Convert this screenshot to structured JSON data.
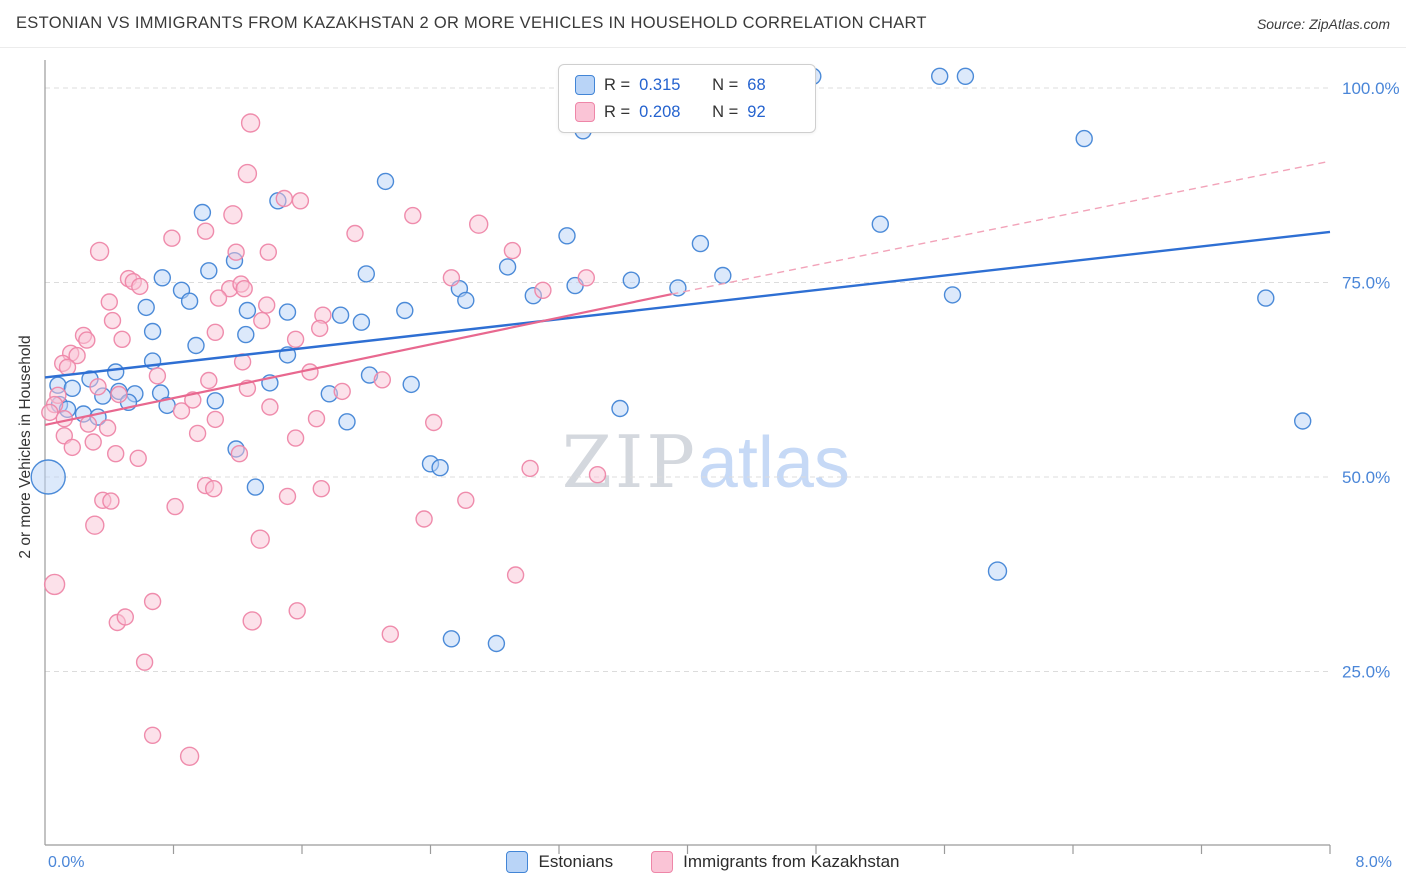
{
  "header": {
    "title": "ESTONIAN VS IMMIGRANTS FROM KAZAKHSTAN 2 OR MORE VEHICLES IN HOUSEHOLD CORRELATION CHART",
    "source": "Source: ZipAtlas.com"
  },
  "watermark": {
    "zip": "ZIP",
    "atlas": "atlas"
  },
  "colors": {
    "axis_label_blue": "#4a86d8",
    "legend_value_blue": "#2563cf",
    "grid_gray": "#dcdcdc",
    "axis_gray": "#9b9b9b",
    "estonians_fill": "#b9d4f7",
    "estonians_stroke": "#4285d6",
    "kazakhstan_fill": "#fac4d6",
    "kazakhstan_stroke": "#ee86a8",
    "trend_blue": "#2e6fd3",
    "trend_pink": "#e8688f"
  },
  "legend_box": {
    "rows": [
      {
        "series": "Estonians",
        "r_label": "R =",
        "r_value": "0.315",
        "n_label": "N =",
        "n_value": "68"
      },
      {
        "series": "Immigrants from Kazakhstan",
        "r_label": "R =",
        "r_value": "0.208",
        "n_label": "N =",
        "n_value": "92"
      }
    ]
  },
  "axes": {
    "y_label": "2 or more Vehicles in Household",
    "y_ticks": [
      {
        "label": "100.0%",
        "value": 100
      },
      {
        "label": "75.0%",
        "value": 75
      },
      {
        "label": "50.0%",
        "value": 50
      },
      {
        "label": "25.0%",
        "value": 25
      }
    ],
    "x_min_label": "0.0%",
    "x_max_label": "8.0%"
  },
  "bottom_legend": [
    {
      "label": "Estonians"
    },
    {
      "label": "Immigrants from Kazakhstan"
    }
  ],
  "chart_data": {
    "type": "scatter",
    "title": "ESTONIAN VS IMMIGRANTS FROM KAZAKHSTAN 2 OR MORE VEHICLES IN HOUSEHOLD CORRELATION CHART",
    "xlabel": "",
    "ylabel": "2 or more Vehicles in Household",
    "x_range": [
      0,
      8
    ],
    "y_range": [
      0,
      105
    ],
    "x_tick_interval": 0.8,
    "grid": "horizontal-dashed",
    "legend_position": "top-center",
    "series": [
      {
        "name": "Estonians",
        "R": 0.315,
        "N": 68,
        "fill": "#b9d4f7",
        "stroke": "#4285d6",
        "points": [
          [
            0.02,
            50.0,
            17
          ],
          [
            4.78,
            101.5,
            8
          ],
          [
            5.57,
            101.5,
            8
          ],
          [
            5.73,
            101.5,
            8
          ],
          [
            3.35,
            94.5,
            8
          ],
          [
            6.47,
            93.5,
            8
          ],
          [
            2.12,
            88.0,
            8
          ],
          [
            1.45,
            85.5,
            8
          ],
          [
            0.98,
            84.0,
            8
          ],
          [
            5.2,
            82.5,
            8
          ],
          [
            3.25,
            81.0,
            8
          ],
          [
            4.08,
            80.0,
            8
          ],
          [
            2.88,
            77.0,
            8
          ],
          [
            1.18,
            77.8,
            8
          ],
          [
            2.0,
            76.1,
            8
          ],
          [
            1.02,
            76.5,
            8
          ],
          [
            0.73,
            75.6,
            8
          ],
          [
            4.22,
            75.9,
            8
          ],
          [
            3.65,
            75.3,
            8
          ],
          [
            3.94,
            74.3,
            8
          ],
          [
            5.65,
            73.4,
            8
          ],
          [
            7.6,
            73.0,
            8
          ],
          [
            2.58,
            74.2,
            8
          ],
          [
            2.62,
            72.7,
            8
          ],
          [
            3.04,
            73.3,
            8
          ],
          [
            0.85,
            74.0,
            8
          ],
          [
            0.9,
            72.6,
            8
          ],
          [
            0.63,
            71.8,
            8
          ],
          [
            1.26,
            71.4,
            8
          ],
          [
            1.51,
            71.2,
            8
          ],
          [
            2.24,
            71.4,
            8
          ],
          [
            1.84,
            70.8,
            8
          ],
          [
            1.97,
            69.9,
            8
          ],
          [
            0.67,
            68.7,
            8
          ],
          [
            1.25,
            68.3,
            8
          ],
          [
            0.94,
            66.9,
            8
          ],
          [
            1.51,
            65.7,
            8
          ],
          [
            0.67,
            64.9,
            8
          ],
          [
            0.44,
            63.5,
            8
          ],
          [
            0.28,
            62.6,
            8
          ],
          [
            0.08,
            61.8,
            8
          ],
          [
            0.17,
            61.4,
            8
          ],
          [
            0.46,
            61.0,
            8
          ],
          [
            0.36,
            60.4,
            8
          ],
          [
            0.56,
            60.7,
            8
          ],
          [
            0.72,
            60.8,
            8
          ],
          [
            1.06,
            59.8,
            8
          ],
          [
            0.76,
            59.2,
            8
          ],
          [
            0.09,
            59.3,
            8
          ],
          [
            0.14,
            58.7,
            8
          ],
          [
            0.24,
            58.1,
            8
          ],
          [
            1.77,
            60.7,
            8
          ],
          [
            2.28,
            61.9,
            8
          ],
          [
            1.88,
            57.1,
            8
          ],
          [
            3.58,
            58.8,
            8
          ],
          [
            1.19,
            53.6,
            8
          ],
          [
            1.31,
            48.7,
            8
          ],
          [
            2.4,
            51.7,
            8
          ],
          [
            2.46,
            51.2,
            8
          ],
          [
            5.93,
            37.9,
            9
          ],
          [
            2.53,
            29.2,
            8
          ],
          [
            2.81,
            28.6,
            8
          ],
          [
            7.83,
            57.2,
            8
          ],
          [
            2.02,
            63.1,
            8
          ],
          [
            0.52,
            59.6,
            8
          ],
          [
            0.33,
            57.7,
            8
          ],
          [
            1.4,
            62.1,
            8
          ],
          [
            3.3,
            74.6,
            8
          ]
        ]
      },
      {
        "name": "Immigrants from Kazakhstan",
        "R": 0.208,
        "N": 92,
        "fill": "#fac4d6",
        "stroke": "#ee86a8",
        "points": [
          [
            1.28,
            95.5,
            9
          ],
          [
            1.26,
            89.0,
            9
          ],
          [
            1.49,
            85.8,
            8
          ],
          [
            1.59,
            85.5,
            8
          ],
          [
            1.17,
            83.7,
            9
          ],
          [
            2.29,
            83.6,
            8
          ],
          [
            2.7,
            82.5,
            9
          ],
          [
            1.0,
            81.6,
            8
          ],
          [
            1.93,
            81.3,
            8
          ],
          [
            0.79,
            80.7,
            8
          ],
          [
            1.19,
            78.9,
            8
          ],
          [
            0.34,
            79.0,
            9
          ],
          [
            1.39,
            78.9,
            8
          ],
          [
            2.91,
            79.1,
            8
          ],
          [
            0.52,
            75.5,
            8
          ],
          [
            0.55,
            75.1,
            8
          ],
          [
            0.59,
            74.5,
            8
          ],
          [
            1.15,
            74.2,
            8
          ],
          [
            1.22,
            74.8,
            8
          ],
          [
            1.24,
            74.2,
            8
          ],
          [
            1.08,
            73.0,
            8
          ],
          [
            0.4,
            72.5,
            8
          ],
          [
            1.38,
            72.1,
            8
          ],
          [
            2.53,
            75.6,
            8
          ],
          [
            3.37,
            75.6,
            8
          ],
          [
            3.1,
            74.0,
            8
          ],
          [
            0.42,
            70.1,
            8
          ],
          [
            0.24,
            68.2,
            8
          ],
          [
            0.26,
            67.6,
            8
          ],
          [
            0.48,
            67.7,
            8
          ],
          [
            1.35,
            70.1,
            8
          ],
          [
            1.73,
            70.8,
            8
          ],
          [
            1.71,
            69.1,
            8
          ],
          [
            1.56,
            67.7,
            8
          ],
          [
            1.06,
            68.6,
            8
          ],
          [
            0.16,
            65.9,
            8
          ],
          [
            0.2,
            65.6,
            8
          ],
          [
            0.11,
            64.6,
            8
          ],
          [
            0.14,
            64.1,
            8
          ],
          [
            1.23,
            64.8,
            8
          ],
          [
            1.02,
            62.4,
            8
          ],
          [
            1.26,
            61.4,
            8
          ],
          [
            0.33,
            61.6,
            8
          ],
          [
            0.46,
            60.6,
            8
          ],
          [
            0.08,
            60.5,
            8
          ],
          [
            0.06,
            59.3,
            8
          ],
          [
            0.03,
            58.3,
            8
          ],
          [
            0.12,
            57.5,
            8
          ],
          [
            0.27,
            56.8,
            8
          ],
          [
            0.39,
            56.3,
            8
          ],
          [
            0.12,
            55.3,
            8
          ],
          [
            0.36,
            47.0,
            8
          ],
          [
            0.41,
            46.9,
            8
          ],
          [
            0.31,
            43.8,
            9
          ],
          [
            0.81,
            46.2,
            8
          ],
          [
            1.0,
            48.9,
            8
          ],
          [
            1.05,
            48.5,
            8
          ],
          [
            1.34,
            42.0,
            9
          ],
          [
            1.51,
            47.5,
            8
          ],
          [
            1.72,
            48.5,
            8
          ],
          [
            2.36,
            44.6,
            8
          ],
          [
            2.62,
            47.0,
            8
          ],
          [
            3.02,
            51.1,
            8
          ],
          [
            2.93,
            37.4,
            8
          ],
          [
            0.06,
            36.2,
            10
          ],
          [
            0.45,
            31.3,
            8
          ],
          [
            0.5,
            32.0,
            8
          ],
          [
            0.67,
            34.0,
            8
          ],
          [
            1.29,
            31.5,
            9
          ],
          [
            1.57,
            32.8,
            8
          ],
          [
            2.15,
            29.8,
            8
          ],
          [
            0.62,
            26.2,
            8
          ],
          [
            0.67,
            16.8,
            8
          ],
          [
            0.9,
            14.1,
            9
          ],
          [
            0.3,
            54.5,
            8
          ],
          [
            0.17,
            53.8,
            8
          ],
          [
            0.44,
            53.0,
            8
          ],
          [
            0.58,
            52.4,
            8
          ],
          [
            0.95,
            55.6,
            8
          ],
          [
            1.56,
            55.0,
            8
          ],
          [
            1.69,
            57.5,
            8
          ],
          [
            1.06,
            57.4,
            8
          ],
          [
            0.85,
            58.5,
            8
          ],
          [
            1.21,
            53.0,
            8
          ],
          [
            2.42,
            57.0,
            8
          ],
          [
            1.85,
            61.0,
            8
          ],
          [
            2.1,
            62.5,
            8
          ],
          [
            1.65,
            63.5,
            8
          ],
          [
            0.7,
            63.0,
            8
          ],
          [
            0.92,
            59.9,
            8
          ],
          [
            1.4,
            59.0,
            8
          ],
          [
            3.44,
            50.3,
            8
          ]
        ]
      }
    ],
    "trend_lines": [
      {
        "series": "Estonians",
        "color": "#2e6fd3",
        "width": 2.4,
        "style": "solid",
        "x0": 0,
        "y0": 62.8,
        "x1": 8.0,
        "y1": 81.5
      },
      {
        "series": "Immigrants from Kazakhstan",
        "color": "#e8688f",
        "width": 2.2,
        "style": "solid",
        "x0": 0,
        "y0": 56.7,
        "x1": 3.9,
        "y1": 73.5
      },
      {
        "series": "Immigrants from Kazakhstan",
        "color": "#f2a3b9",
        "width": 1.4,
        "style": "dashed",
        "x0": 3.9,
        "y0": 73.5,
        "x1": 7.98,
        "y1": 90.5
      }
    ]
  }
}
